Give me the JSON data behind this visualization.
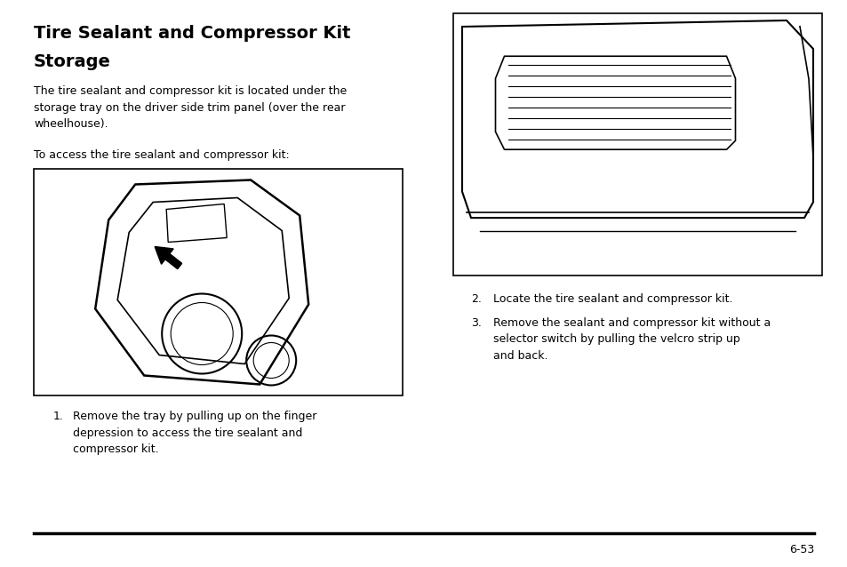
{
  "bg_color": "#ffffff",
  "title_line1": "Tire Sealant and Compressor Kit",
  "title_line2": "Storage",
  "body_text": "The tire sealant and compressor kit is located under the\nstorage tray on the driver side trim panel (over the rear\nwheelhouse).",
  "access_text": "To access the tire sealant and compressor kit:",
  "item1_num": "1.",
  "item1_text": "Remove the tray by pulling up on the finger\ndepression to access the tire sealant and\ncompressor kit.",
  "item2_num": "2.",
  "item2_text": "Locate the tire sealant and compressor kit.",
  "item3_num": "3.",
  "item3_text": "Remove the sealant and compressor kit without a\nselector switch by pulling the velcro strip up\nand back.",
  "page_number": "6-53",
  "title_fontsize": 14,
  "body_fontsize": 9,
  "item_fontsize": 9
}
